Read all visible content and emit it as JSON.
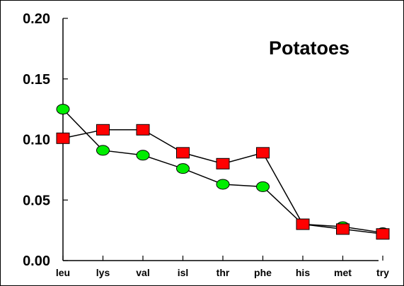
{
  "chart_data": {
    "type": "line",
    "title": "Potatoes",
    "categories": [
      "leu",
      "lys",
      "val",
      "isl",
      "thr",
      "phe",
      "his",
      "met",
      "try"
    ],
    "ylim": [
      0,
      0.2
    ],
    "yticks": [
      "0.00",
      "0.05",
      "0.10",
      "0.15",
      "0.20"
    ],
    "grid": false,
    "series": [
      {
        "marker": "circle",
        "color": "#00ee00",
        "values": [
          0.125,
          0.091,
          0.087,
          0.076,
          0.063,
          0.061,
          0.03,
          0.028,
          0.023
        ]
      },
      {
        "marker": "square",
        "color": "#ff0000",
        "values": [
          0.101,
          0.108,
          0.108,
          0.089,
          0.08,
          0.089,
          0.03,
          0.026,
          0.022
        ]
      }
    ]
  }
}
